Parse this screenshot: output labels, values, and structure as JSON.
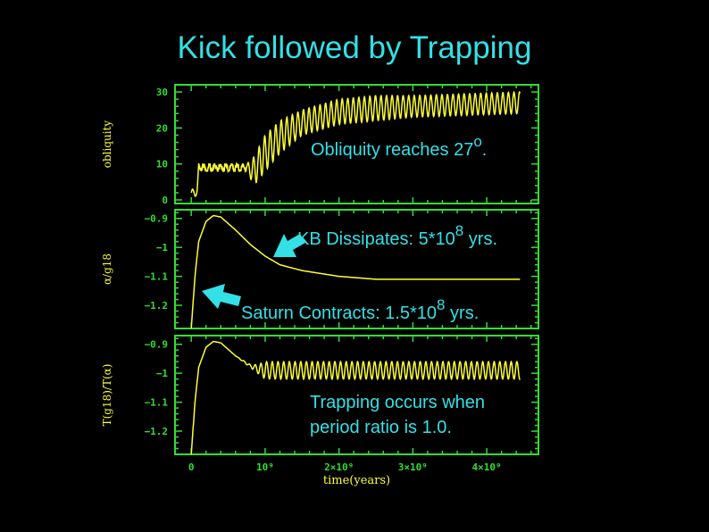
{
  "title": "Kick followed by Trapping",
  "colors": {
    "background": "#000000",
    "title": "#33e0e6",
    "axes": "#33dd33",
    "curve": "#ffff33",
    "annotation": "#33e0e6"
  },
  "annotations": {
    "obliquity": {
      "text": "Obliquity reaches 27",
      "sup": "o",
      "tail": "."
    },
    "kb": {
      "text": "KB Dissipates: 5*10",
      "sup": "8",
      "tail": " yrs."
    },
    "saturn": {
      "text": "Saturn Contracts: 1.5*10",
      "sup": "8",
      "tail": " yrs."
    },
    "trapping_line1": "Trapping occurs when",
    "trapping_line2": "period ratio is 1.0."
  },
  "chart_data": [
    {
      "type": "line",
      "ylabel": "obliquity",
      "xlim": [
        -220000000.0,
        4700000000.0
      ],
      "ylim": [
        -1,
        32
      ],
      "yticks": [
        "0",
        "10",
        "20",
        "30"
      ],
      "ytick_values": [
        0,
        10,
        20,
        30
      ],
      "oscillating": true,
      "series": [
        {
          "x": [
            0,
            80000000.0,
            100000000.0,
            750000000.0,
            850000000.0,
            1000000000.0,
            1200000000.0,
            1500000000.0,
            2000000000.0,
            2500000000.0,
            3000000000.0,
            4450000000.0
          ],
          "min": [
            1,
            1,
            8,
            8,
            4,
            8,
            13,
            18,
            21,
            22,
            23,
            24
          ],
          "max": [
            3,
            3,
            10,
            10,
            12,
            18,
            22,
            25,
            28,
            29,
            29,
            30
          ]
        }
      ]
    },
    {
      "type": "line",
      "ylabel": "α/g18",
      "xlim": [
        -220000000.0,
        4700000000.0
      ],
      "ylim": [
        -1.28,
        -0.87
      ],
      "yticks": [
        "−0.9",
        "−1",
        "−1.1",
        "−1.2"
      ],
      "ytick_values": [
        -0.9,
        -1.0,
        -1.1,
        -1.2
      ],
      "oscillating": false,
      "series": [
        {
          "x": [
            0,
            50000000.0,
            100000000.0,
            200000000.0,
            300000000.0,
            400000000.0,
            600000000.0,
            800000000.0,
            1000000000.0,
            1200000000.0,
            1500000000.0,
            2000000000.0,
            2500000000.0,
            3000000000.0,
            4450000000.0
          ],
          "y": [
            -1.28,
            -1.1,
            -0.98,
            -0.91,
            -0.89,
            -0.895,
            -0.94,
            -0.99,
            -1.03,
            -1.06,
            -1.08,
            -1.1,
            -1.11,
            -1.11,
            -1.11
          ]
        }
      ]
    },
    {
      "type": "line",
      "ylabel": "T(g18)/T(α)",
      "xlabel": "time(years)",
      "xticks": [
        "0",
        "10⁹",
        "2×10⁹",
        "3×10⁹",
        "4×10⁹"
      ],
      "xtick_values": [
        0,
        1000000000.0,
        2000000000.0,
        3000000000.0,
        4000000000.0
      ],
      "xlim": [
        -220000000.0,
        4700000000.0
      ],
      "ylim": [
        -1.28,
        -0.87
      ],
      "yticks": [
        "−0.9",
        "−1",
        "−1.1",
        "−1.2"
      ],
      "ytick_values": [
        -0.9,
        -1.0,
        -1.1,
        -1.2
      ],
      "oscillating": true,
      "series": [
        {
          "x": [
            0,
            50000000.0,
            100000000.0,
            200000000.0,
            300000000.0,
            400000000.0,
            600000000.0,
            800000000.0,
            900000000.0,
            1000000000.0,
            4450000000.0
          ],
          "min": [
            -1.28,
            -1.1,
            -0.98,
            -0.91,
            -0.89,
            -0.895,
            -0.94,
            -0.98,
            -1.0,
            -1.02,
            -1.02
          ],
          "max": [
            -1.28,
            -1.1,
            -0.98,
            -0.91,
            -0.89,
            -0.895,
            -0.94,
            -0.97,
            -0.97,
            -0.96,
            -0.96
          ]
        }
      ]
    }
  ]
}
